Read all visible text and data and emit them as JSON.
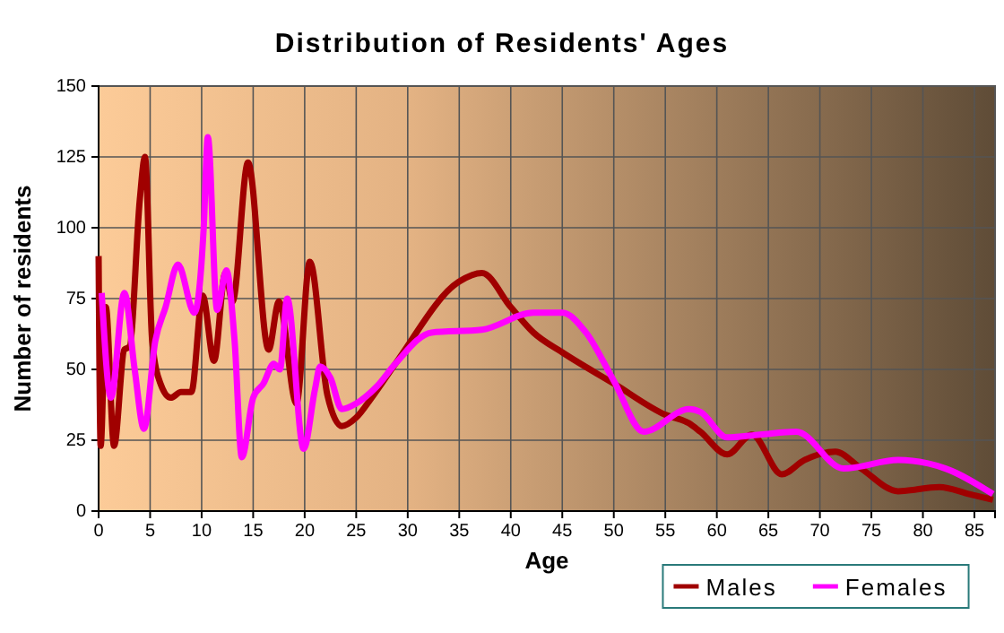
{
  "chart_data": {
    "type": "line",
    "title": "Distribution of Residents' Ages",
    "xlabel": "Age",
    "ylabel": "Number of residents",
    "xlim": [
      0,
      87
    ],
    "xticks": [
      0,
      5,
      10,
      15,
      20,
      25,
      30,
      35,
      40,
      45,
      50,
      55,
      60,
      65,
      70,
      75,
      80,
      85
    ],
    "ylim": [
      0,
      150
    ],
    "yticks": [
      0,
      25,
      50,
      75,
      100,
      125,
      150
    ],
    "grid": true,
    "legend": "bottom",
    "line_style": "solid",
    "marker": "none",
    "series": [
      {
        "name": "Males",
        "color": "#a00000",
        "x": [
          0,
          0.2,
          0.7,
          1.5,
          2.5,
          3,
          4,
          4.5,
          5.2,
          6,
          7,
          8,
          9,
          10.1,
          11.2,
          12.3,
          13,
          14.5,
          16.5,
          17.5,
          19.2,
          20.5,
          22.2,
          23.6,
          25,
          26.5,
          28.8,
          35,
          37.2,
          40,
          42.2,
          45,
          50,
          55,
          57.3,
          58.4,
          61,
          63.4,
          66.3,
          68.5,
          71.5,
          74,
          77.6,
          81.6,
          84.5,
          86.8
        ],
        "values": [
          90,
          23,
          72,
          23,
          57,
          58,
          110,
          125,
          60,
          45,
          40,
          42,
          42,
          76,
          53,
          84,
          74,
          123,
          57,
          74,
          38,
          88,
          41,
          30,
          33,
          40,
          52,
          81,
          84,
          72,
          63,
          56,
          45,
          34,
          31,
          28,
          20,
          27,
          13,
          18,
          21,
          15,
          7,
          8.5,
          6,
          4
        ]
      },
      {
        "name": "Females",
        "color": "#ff00ff",
        "x": [
          0.3,
          1.2,
          2.5,
          3.5,
          4.4,
          5.5,
          6.5,
          7.7,
          9.3,
          10.2,
          10.6,
          11.5,
          12.4,
          13.2,
          13.9,
          15,
          16,
          17,
          17.6,
          18.3,
          19.9,
          21,
          21.5,
          22.5,
          23.6,
          25,
          27,
          28.8,
          32.3,
          37.2,
          42.2,
          45,
          47.3,
          50,
          52.9,
          57.3,
          58.4,
          61,
          64.2,
          67.7,
          72.3,
          77.6,
          82.2,
          86.8
        ],
        "values": [
          77,
          40,
          77,
          50,
          29,
          60,
          72,
          87,
          70,
          100,
          132,
          71,
          85,
          60,
          19,
          40,
          45,
          52,
          50,
          75,
          22,
          43,
          51,
          47,
          36,
          38,
          44,
          52,
          63,
          64,
          70,
          70,
          63,
          46,
          28,
          36,
          35,
          26,
          27,
          28,
          15,
          18,
          15,
          6
        ]
      }
    ]
  }
}
